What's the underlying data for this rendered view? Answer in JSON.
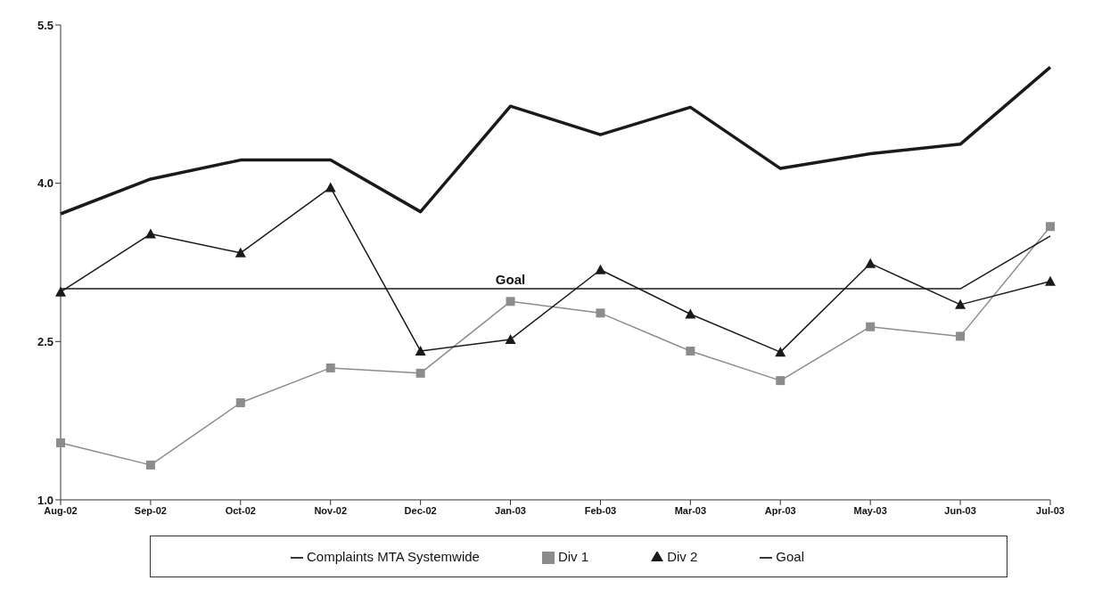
{
  "chart_data": {
    "type": "line",
    "categories": [
      "Aug-02",
      "Sep-02",
      "Oct-02",
      "Nov-02",
      "Dec-02",
      "Jan-03",
      "Feb-03",
      "Mar-03",
      "Apr-03",
      "May-03",
      "Jun-03",
      "Jul-03"
    ],
    "series": [
      {
        "name": "Complaints MTA Systemwide",
        "color": "#1a1a1a",
        "marker": "none",
        "values": [
          3.71,
          4.04,
          4.22,
          4.22,
          3.73,
          4.73,
          4.46,
          4.72,
          4.14,
          4.28,
          4.37,
          5.1
        ]
      },
      {
        "name": "Div 1",
        "color": "#8c8c8c",
        "marker": "square",
        "values": [
          1.54,
          1.33,
          1.92,
          2.25,
          2.2,
          2.88,
          2.77,
          2.41,
          2.13,
          2.64,
          2.55,
          3.59
        ]
      },
      {
        "name": "Div 2",
        "color": "#1a1a1a",
        "marker": "triangle",
        "values": [
          2.97,
          3.52,
          3.34,
          3.96,
          2.41,
          2.52,
          3.18,
          2.76,
          2.4,
          3.24,
          2.85,
          3.07
        ]
      },
      {
        "name": "Goal",
        "color": "#1a1a1a",
        "marker": "none",
        "values": [
          3.0,
          3.0,
          3.0,
          3.0,
          3.0,
          3.0,
          3.0,
          3.0,
          3.0,
          3.0,
          3.0,
          3.5
        ]
      }
    ],
    "annotations": [
      {
        "text": "Goal",
        "x": "Jan-03",
        "y": 3.0
      }
    ],
    "ylim": [
      1.0,
      5.5
    ],
    "yticks": [
      {
        "value": 1.0,
        "label": "1.0"
      },
      {
        "value": 2.5,
        "label": "2.5"
      },
      {
        "value": 4.0,
        "label": "4.0"
      },
      {
        "value": 5.5,
        "label": "5.5"
      }
    ],
    "grid": false,
    "legend": "bottom"
  }
}
